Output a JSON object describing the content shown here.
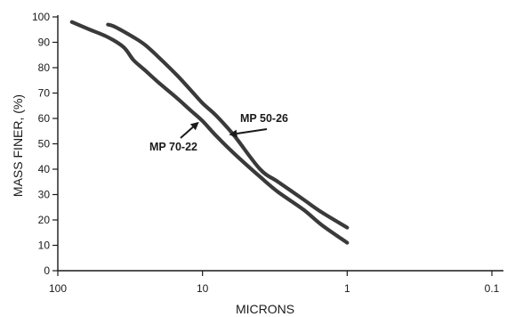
{
  "chart_data": {
    "type": "line",
    "title": "",
    "xlabel": "MICRONS",
    "ylabel": "MASS FINER, (%)",
    "xscale": "log",
    "x_reversed": true,
    "xlim": [
      100,
      0.1
    ],
    "ylim": [
      0,
      100
    ],
    "x_ticks": [
      100,
      10,
      1,
      0.1
    ],
    "x_tick_labels": [
      "100",
      "10",
      "1",
      "0.1"
    ],
    "y_ticks": [
      0,
      10,
      20,
      30,
      40,
      50,
      60,
      70,
      80,
      90,
      100
    ],
    "y_tick_labels": [
      "0",
      "10",
      "20",
      "30",
      "40",
      "50",
      "60",
      "70",
      "80",
      "90",
      "100"
    ],
    "grid": false,
    "legend": "none",
    "series": [
      {
        "name": "MP 70-22",
        "x": [
          80,
          60,
          45,
          35,
          30,
          25,
          20,
          15,
          12,
          10,
          8,
          6,
          4,
          3,
          2,
          1.5,
          1
        ],
        "y": [
          98,
          95,
          92,
          88,
          83,
          79,
          74,
          68,
          63,
          59,
          53,
          46,
          37,
          31,
          24,
          18,
          11
        ]
      },
      {
        "name": "MP 50-26",
        "x": [
          45,
          40,
          30,
          25,
          20,
          15,
          12,
          10,
          8,
          6,
          4,
          3,
          2,
          1.5,
          1
        ],
        "y": [
          97,
          96,
          92,
          89,
          84,
          77,
          71,
          66,
          61,
          53,
          40,
          35,
          28,
          23,
          17
        ]
      }
    ],
    "annotations": [
      {
        "text": "MP 70-22",
        "target_series": "MP 70-22"
      },
      {
        "text": "MP 50-26",
        "target_series": "MP 50-26"
      }
    ]
  }
}
